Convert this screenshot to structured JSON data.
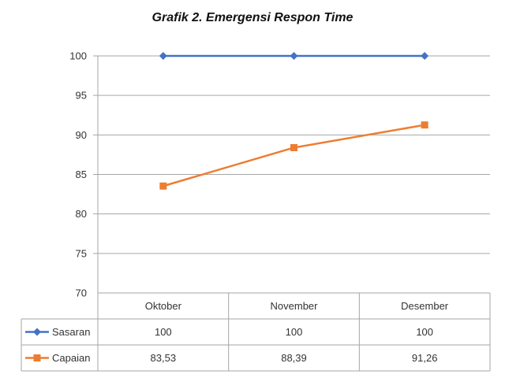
{
  "chart_data": {
    "type": "line",
    "title": "Grafik 2. Emergensi Respon Time",
    "categories": [
      "Oktober",
      "November",
      "Desember"
    ],
    "series": [
      {
        "name": "Sasaran",
        "values": [
          100,
          100,
          100
        ],
        "labels": [
          "100",
          "100",
          "100"
        ],
        "color": "#4472C4",
        "marker": "diamond"
      },
      {
        "name": "Capaian",
        "values": [
          83.53,
          88.39,
          91.26
        ],
        "labels": [
          "83,53",
          "88,39",
          "91,26"
        ],
        "color": "#ED7D31",
        "marker": "square"
      }
    ],
    "ylim": [
      70,
      100
    ],
    "yticks": [
      70,
      75,
      80,
      85,
      90,
      95,
      100
    ],
    "grid": true,
    "data_table": true,
    "legend_position": "data-table-left"
  }
}
